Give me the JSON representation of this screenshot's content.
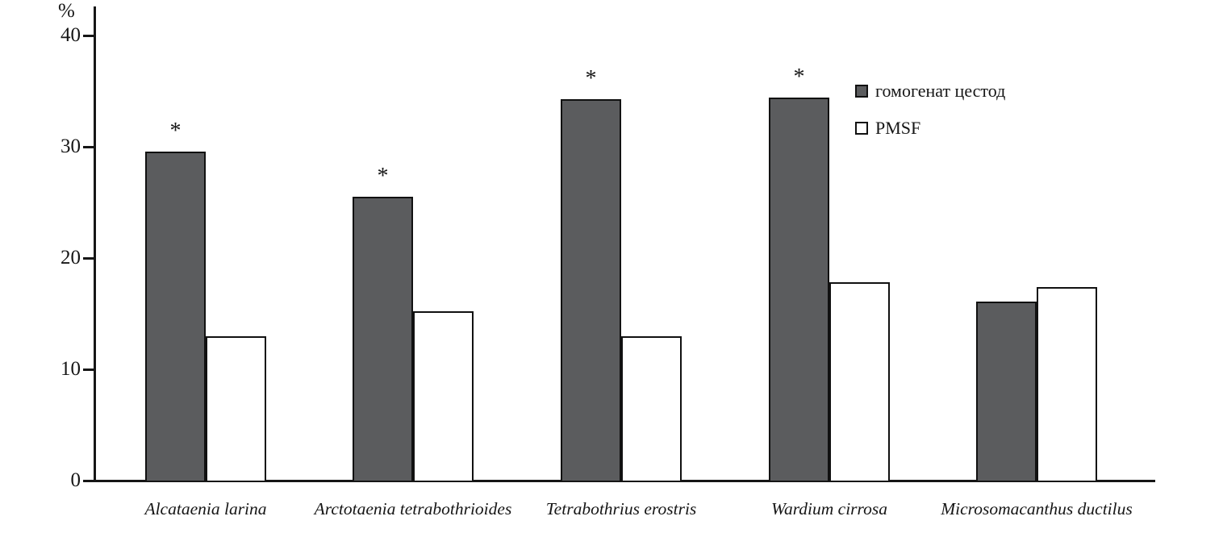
{
  "chart_data": {
    "type": "bar",
    "title": "",
    "xlabel": "",
    "ylabel": "%",
    "ylim": [
      0,
      42.5
    ],
    "yticks": [
      0,
      10,
      20,
      30,
      40
    ],
    "grid": false,
    "legend_position": "top-right",
    "categories": [
      "Alcataenia larina",
      "Arctotaenia tetrabothrioides",
      "Tetrabothrius erostris",
      "Wardium cirrosa",
      "Microsomacanthus ductilus"
    ],
    "series": [
      {
        "name": "гомогенат цестод",
        "color": "#5b5c5e",
        "values": [
          29.6,
          25.5,
          34.3,
          34.4,
          16.1
        ]
      },
      {
        "name": "PMSF",
        "color": "#ffffff",
        "values": [
          13.0,
          15.2,
          13.0,
          17.8,
          17.4
        ]
      }
    ],
    "annotations": {
      "symbol": "*",
      "applies_to_series": "гомогенат цестод",
      "per_category": [
        true,
        true,
        true,
        true,
        false
      ]
    }
  }
}
